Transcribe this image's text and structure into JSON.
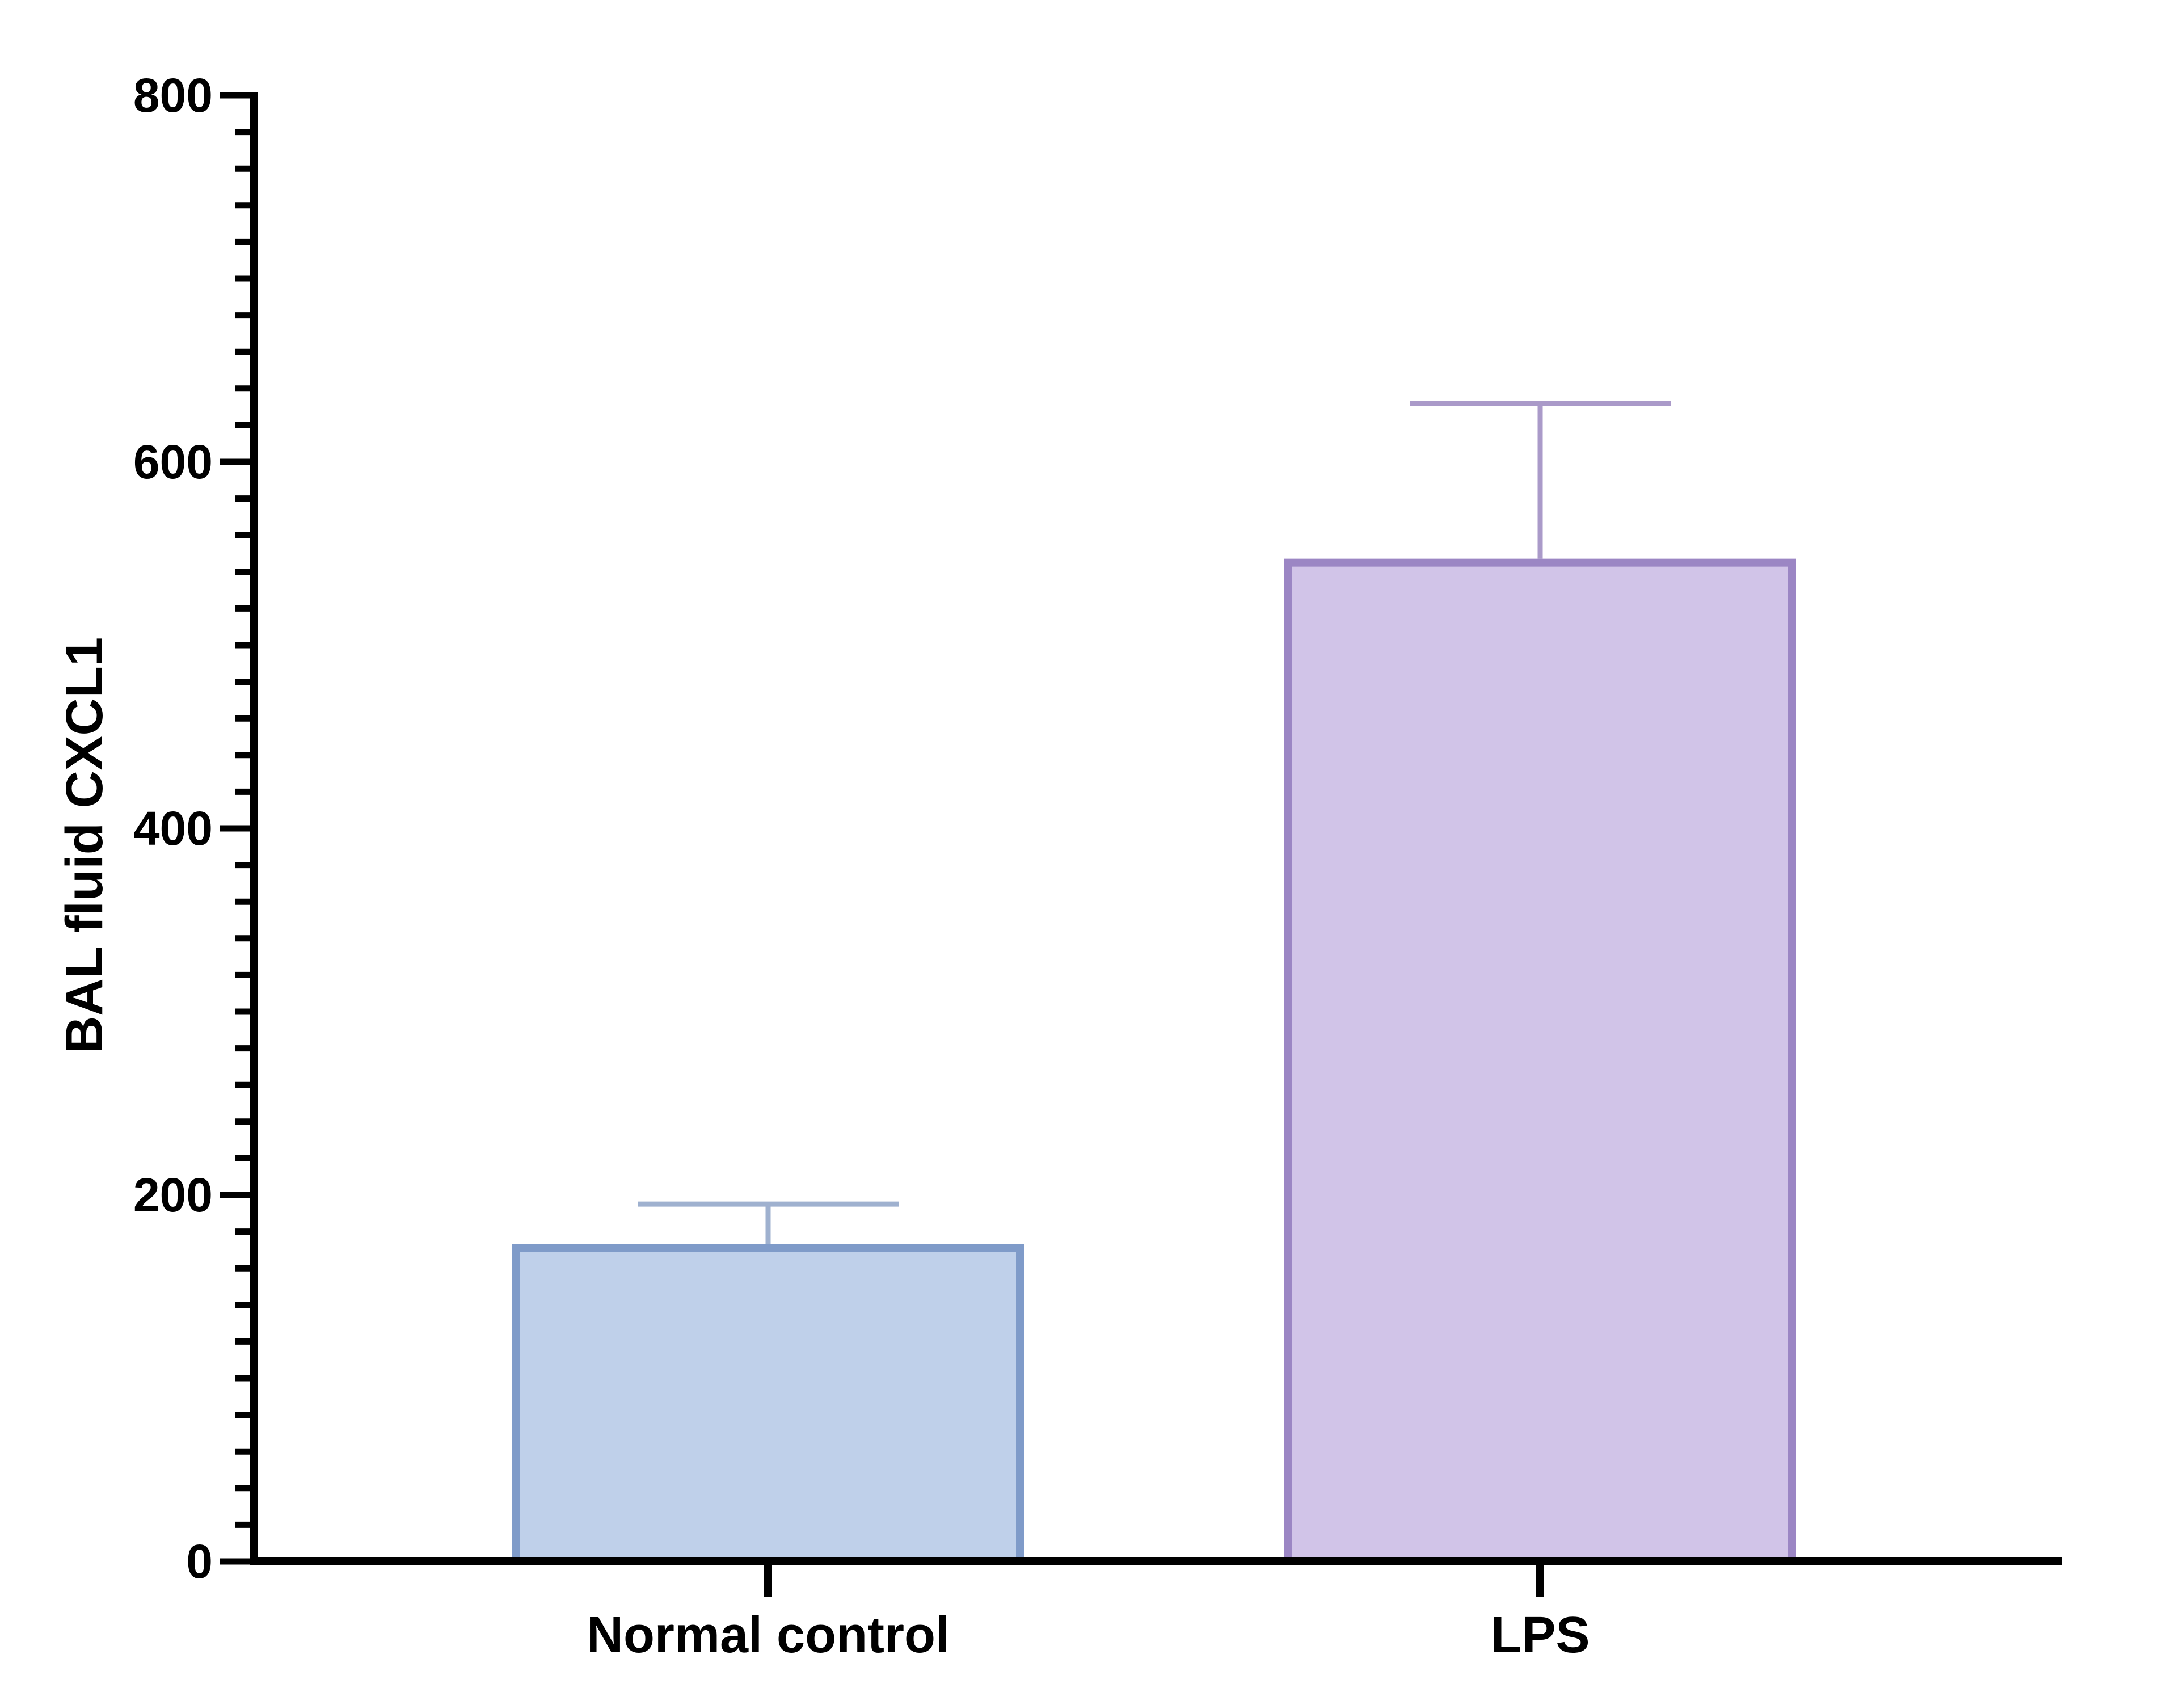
{
  "chart_data": {
    "type": "bar",
    "title": "",
    "xlabel": "",
    "ylabel": "BAL fluid CXCL1",
    "ylim": [
      0,
      800
    ],
    "y_major_ticks": [
      0,
      200,
      400,
      600,
      800
    ],
    "y_minor_step": 20,
    "y_tick_labels": [
      "0",
      "200",
      "400",
      "600",
      "800"
    ],
    "grid": false,
    "legend": "none",
    "categories": [
      "Normal control",
      "LPS"
    ],
    "values": [
      171,
      545
    ],
    "error_upper": [
      195,
      632
    ],
    "colors": {
      "fill": [
        "#bfd0ea",
        "#d1c4e8"
      ],
      "stroke": [
        "#7f9bc9",
        "#9b86c4"
      ],
      "error": [
        "#9fb1cf",
        "#aa9ac9"
      ],
      "axis": "#000000"
    }
  }
}
